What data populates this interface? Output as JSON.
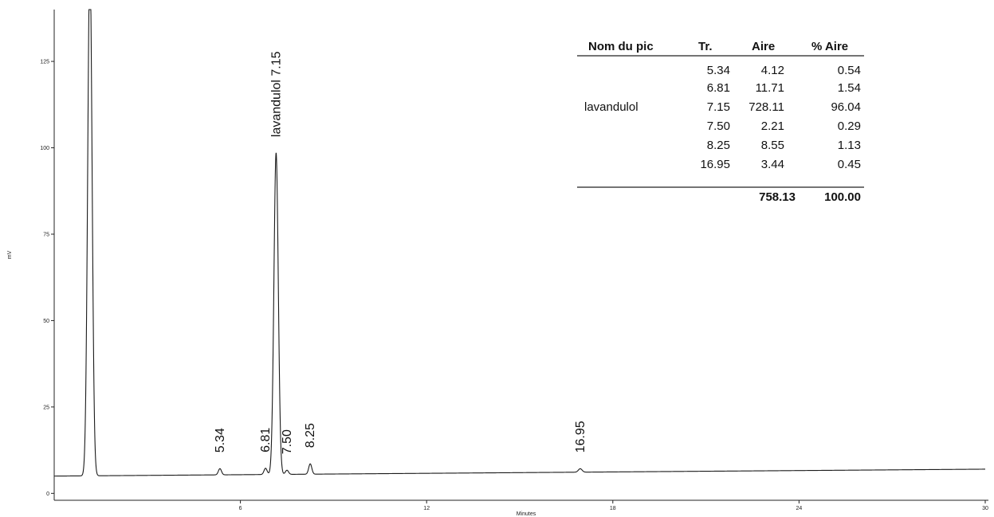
{
  "chart_data": {
    "type": "line",
    "title": "",
    "xlabel": "Minutes",
    "ylabel": "mV",
    "xlim": [
      0,
      30
    ],
    "ylim": [
      -2,
      140
    ],
    "x_ticks": [
      6,
      12,
      18,
      24,
      30
    ],
    "y_ticks": [
      0,
      25,
      50,
      75,
      100,
      125
    ],
    "baseline": {
      "start_mv": 5,
      "end_mv": 7
    },
    "series": [
      {
        "peaks": [
          {
            "rt": 1.15,
            "height": 150,
            "width": 0.07
          },
          {
            "rt": 5.34,
            "height": 1.8,
            "width": 0.05,
            "label": "5.34"
          },
          {
            "rt": 6.81,
            "height": 1.8,
            "width": 0.05,
            "label": "6.81"
          },
          {
            "rt": 7.15,
            "height": 93,
            "width": 0.07,
            "label": "lavandulol 7.15"
          },
          {
            "rt": 7.5,
            "height": 1.2,
            "width": 0.05,
            "label": "7.50"
          },
          {
            "rt": 8.25,
            "height": 3.0,
            "width": 0.05,
            "label": "8.25"
          },
          {
            "rt": 16.95,
            "height": 1.0,
            "width": 0.06,
            "label": "16.95"
          }
        ]
      }
    ]
  },
  "peak_table": {
    "headers": [
      "Nom du pic",
      "Tr.",
      "Aire",
      "% Aire"
    ],
    "rows": [
      {
        "name": "",
        "tr": "5.34",
        "area": "4.12",
        "pct": "0.54"
      },
      {
        "name": "",
        "tr": "6.81",
        "area": "11.71",
        "pct": "1.54"
      },
      {
        "name": "lavandulol",
        "tr": "7.15",
        "area": "728.11",
        "pct": "96.04"
      },
      {
        "name": "",
        "tr": "7.50",
        "area": "2.21",
        "pct": "0.29"
      },
      {
        "name": "",
        "tr": "8.25",
        "area": "8.55",
        "pct": "1.13"
      },
      {
        "name": "",
        "tr": "16.95",
        "area": "3.44",
        "pct": "0.45"
      }
    ],
    "total_area": "758.13",
    "total_pct": "100.00"
  }
}
